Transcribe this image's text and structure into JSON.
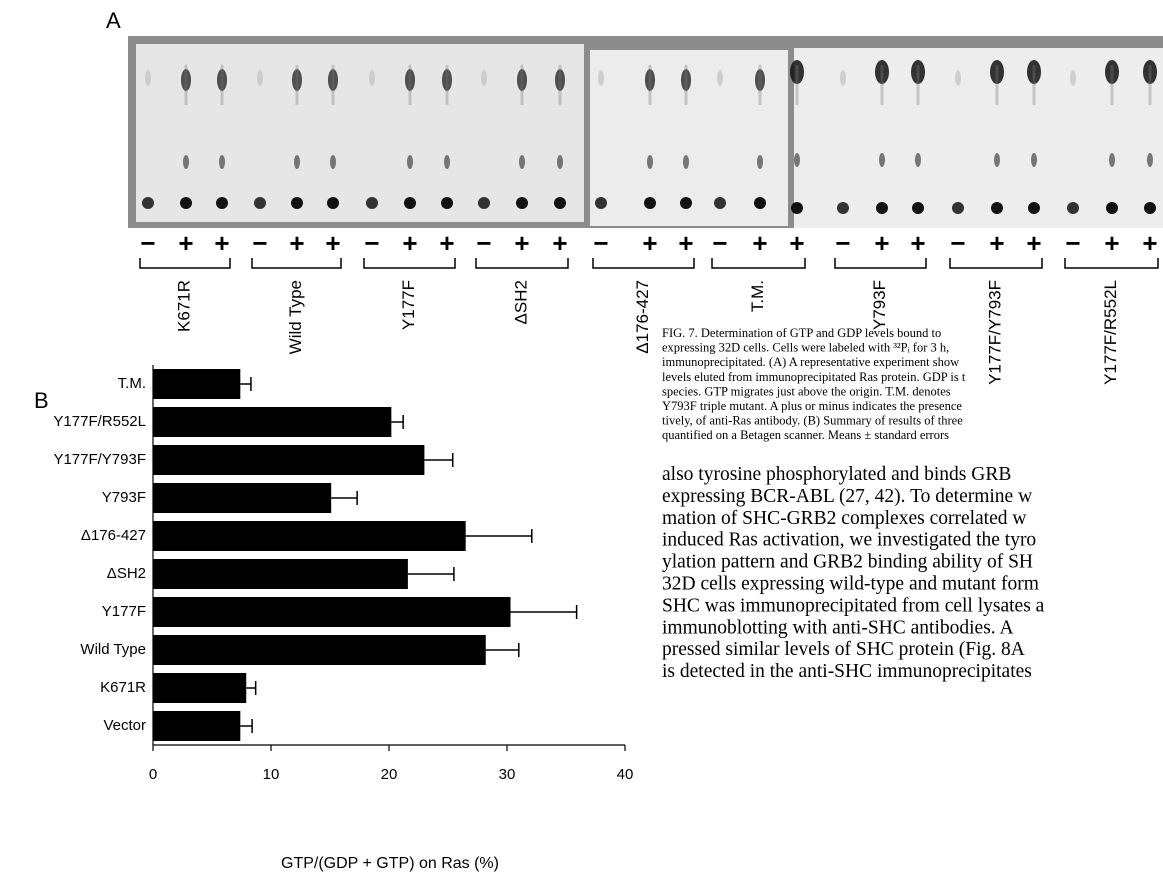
{
  "panel_a": {
    "label": "A",
    "groups": [
      {
        "label": "K671R",
        "signs": [
          "−",
          "+",
          "+"
        ]
      },
      {
        "label": "Wild Type",
        "signs": [
          "−",
          "+",
          "+"
        ]
      },
      {
        "label": "Y177F",
        "signs": [
          "−",
          "+",
          "+"
        ]
      },
      {
        "label": "ΔSH2",
        "signs": [
          "−",
          "+",
          "+"
        ]
      },
      {
        "label": "Δ176-427",
        "signs": [
          "−",
          "+",
          "+"
        ]
      },
      {
        "label": "T.M.",
        "signs": [
          "−",
          "+",
          "+"
        ]
      },
      {
        "label": "Y793F",
        "signs": [
          "−",
          "+",
          "+"
        ]
      },
      {
        "label": "Y177F/Y793F",
        "signs": [
          "−",
          "+",
          "+"
        ]
      },
      {
        "label": "Y177F/R552L",
        "signs": [
          "−",
          "+",
          "+"
        ]
      }
    ]
  },
  "chart_data": {
    "type": "hbar",
    "panel_label": "B",
    "categories": [
      "T.M.",
      "Y177F/R552L",
      "Y177F/Y793F",
      "Y793F",
      "Δ176-427",
      "ΔSH2",
      "Y177F",
      "Wild Type",
      "K671R",
      "Vector"
    ],
    "values": [
      7.4,
      20.2,
      23.0,
      15.1,
      26.5,
      21.6,
      30.3,
      28.2,
      7.9,
      7.4
    ],
    "errors": [
      0.9,
      1.0,
      2.4,
      2.2,
      5.6,
      3.9,
      5.6,
      2.8,
      0.8,
      1.0
    ],
    "color": "#000000",
    "xlim": [
      0,
      40
    ],
    "xticks": [
      0,
      10,
      20,
      30,
      40
    ],
    "x_label": "GTP/(GDP + GTP) on Ras (%)"
  },
  "caption": [
    "FIG. 7. Determination of GTP and GDP levels bound to",
    "expressing 32D cells. Cells were labeled with ³²Pᵢ for 3 h,",
    "immunoprecipitated. (A) A representative experiment show",
    "levels eluted from immunoprecipitated Ras protein. GDP is t",
    "species. GTP migrates just above the origin. T.M. denotes",
    "Y793F triple mutant. A plus or minus indicates the presence",
    "tively, of anti-Ras antibody. (B) Summary of results of three",
    "quantified on a Betagen scanner. Means ± standard errors"
  ],
  "body": [
    "also tyrosine phosphorylated and binds GRB",
    "expressing BCR-ABL (27, 42). To determine w",
    "mation of SHC-GRB2 complexes correlated w",
    "induced Ras activation, we investigated the tyro",
    "ylation pattern and GRB2 binding ability of SH",
    "32D cells expressing wild-type and mutant form",
    "SHC was immunoprecipitated from cell lysates a",
    "immunoblotting with anti-SHC antibodies. A",
    "pressed similar levels of SHC protein (Fig. 8A",
    "is detected in the anti-SHC immunoprecipitates"
  ]
}
